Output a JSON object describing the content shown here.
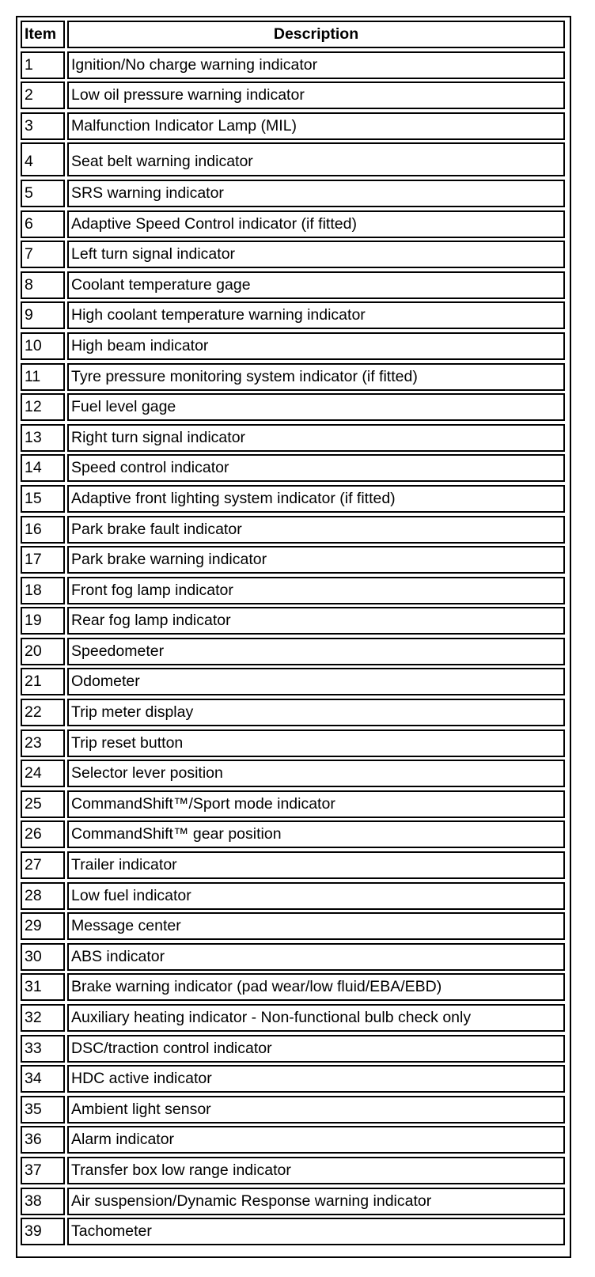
{
  "table": {
    "headers": {
      "item": "Item",
      "description": "Description"
    },
    "rows": [
      {
        "item": "1",
        "description": "Ignition/No charge warning indicator"
      },
      {
        "item": "2",
        "description": "Low oil pressure warning indicator"
      },
      {
        "item": "3",
        "description": "Malfunction Indicator Lamp (MIL)"
      },
      {
        "item": "4",
        "description": "Seat belt warning indicator"
      },
      {
        "item": "5",
        "description": "SRS warning indicator"
      },
      {
        "item": "6",
        "description": "Adaptive Speed Control indicator (if fitted)"
      },
      {
        "item": "7",
        "description": "Left turn signal indicator"
      },
      {
        "item": "8",
        "description": "Coolant temperature gage"
      },
      {
        "item": "9",
        "description": "High coolant temperature warning indicator"
      },
      {
        "item": "10",
        "description": "High beam indicator"
      },
      {
        "item": "11",
        "description": "Tyre pressure monitoring system indicator (if fitted)"
      },
      {
        "item": "12",
        "description": "Fuel level gage"
      },
      {
        "item": "13",
        "description": "Right turn signal indicator"
      },
      {
        "item": "14",
        "description": "Speed control indicator"
      },
      {
        "item": "15",
        "description": "Adaptive front lighting system indicator (if fitted)"
      },
      {
        "item": "16",
        "description": "Park brake fault indicator"
      },
      {
        "item": "17",
        "description": "Park brake warning indicator"
      },
      {
        "item": "18",
        "description": "Front fog lamp indicator"
      },
      {
        "item": "19",
        "description": "Rear fog lamp indicator"
      },
      {
        "item": "20",
        "description": "Speedometer"
      },
      {
        "item": "21",
        "description": "Odometer"
      },
      {
        "item": "22",
        "description": "Trip meter display"
      },
      {
        "item": "23",
        "description": "Trip reset button"
      },
      {
        "item": "24",
        "description": "Selector lever position"
      },
      {
        "item": "25",
        "description": "CommandShift™/Sport mode indicator"
      },
      {
        "item": "26",
        "description": "CommandShift™ gear position"
      },
      {
        "item": "27",
        "description": "Trailer indicator"
      },
      {
        "item": "28",
        "description": "Low fuel indicator"
      },
      {
        "item": "29",
        "description": "Message center"
      },
      {
        "item": "30",
        "description": "ABS indicator"
      },
      {
        "item": "31",
        "description": "Brake warning indicator (pad wear/low fluid/EBA/EBD)"
      },
      {
        "item": "32",
        "description": "Auxiliary heating indicator - Non-functional bulb check only"
      },
      {
        "item": "33",
        "description": "DSC/traction control indicator"
      },
      {
        "item": "34",
        "description": "HDC active indicator"
      },
      {
        "item": "35",
        "description": "Ambient light sensor"
      },
      {
        "item": "36",
        "description": "Alarm indicator"
      },
      {
        "item": "37",
        "description": "Transfer box low range indicator"
      },
      {
        "item": "38",
        "description": "Air suspension/Dynamic Response warning indicator"
      },
      {
        "item": "39",
        "description": "Tachometer"
      }
    ]
  }
}
